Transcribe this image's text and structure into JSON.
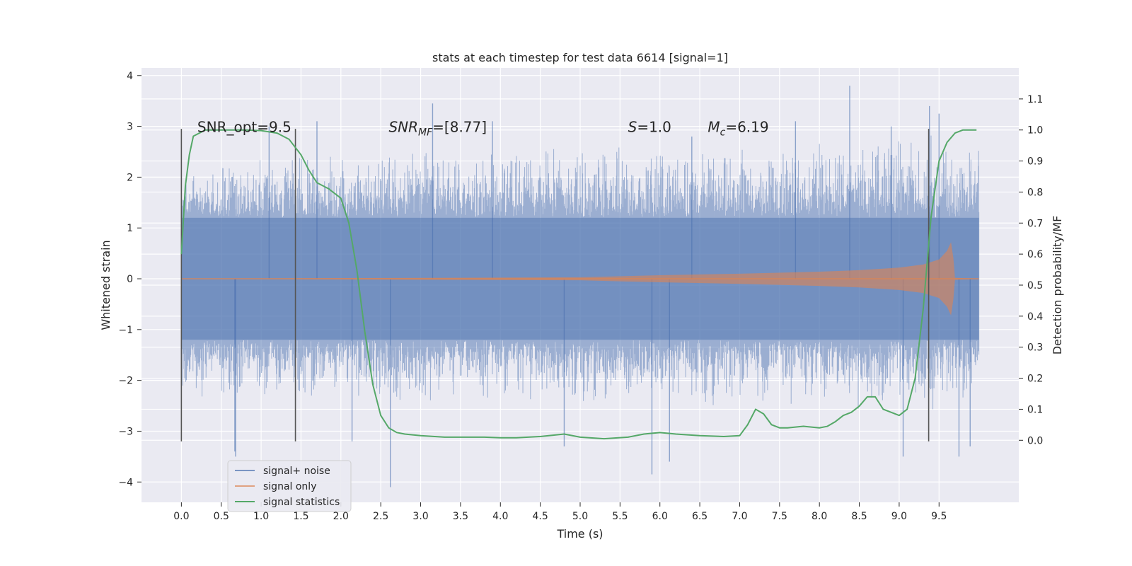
{
  "chart_data": {
    "type": "line",
    "title": "stats at each timestep for test data 6614 [signal=1]",
    "xlabel": "Time (s)",
    "ylabel": "Whitened strain",
    "ylabel_right": "Detection probability/MF",
    "xlim": [
      -0.5,
      10.5
    ],
    "ylim": [
      -4.4,
      4.15
    ],
    "ylim_right": [
      -0.2,
      1.2
    ],
    "x_ticks": [
      0.0,
      0.5,
      1.0,
      1.5,
      2.0,
      2.5,
      3.0,
      3.5,
      4.0,
      4.5,
      5.0,
      5.5,
      6.0,
      6.5,
      7.0,
      7.5,
      8.0,
      8.5,
      9.0,
      9.5
    ],
    "x_tick_labels": [
      "0.0",
      "0.5",
      "1.0",
      "1.5",
      "2.0",
      "2.5",
      "3.0",
      "3.5",
      "4.0",
      "4.5",
      "5.0",
      "5.5",
      "6.0",
      "6.5",
      "7.0",
      "7.5",
      "8.0",
      "8.5",
      "9.0",
      "9.5"
    ],
    "y_ticks": [
      -4,
      -3,
      -2,
      -1,
      0,
      1,
      2,
      3,
      4
    ],
    "y_tick_labels": [
      "−4",
      "−3",
      "−2",
      "−1",
      "0",
      "1",
      "2",
      "3",
      "4"
    ],
    "y_right_ticks": [
      0.0,
      0.1,
      0.2,
      0.3,
      0.4,
      0.5,
      0.6,
      0.7,
      0.8,
      0.9,
      1.0,
      1.1
    ],
    "y_right_tick_labels": [
      "0.0",
      "0.1",
      "0.2",
      "0.3",
      "0.4",
      "0.5",
      "0.6",
      "0.7",
      "0.8",
      "0.9",
      "1.0",
      "1.1"
    ],
    "grid": true,
    "legend_position": "lower-left",
    "colors": {
      "background": "#eaeaf2",
      "grid": "#ffffff",
      "noise": "#4c72b0",
      "signal": "#dd8452",
      "stats": "#55a868",
      "vline": "#555555"
    },
    "annotations": [
      {
        "label": "SNR_opt=9.5",
        "x": 0.2,
        "y": 3.0
      },
      {
        "label": "SNR",
        "sub": "MF",
        "tail": "=[8.77]",
        "x": 2.6,
        "y": 3.0
      },
      {
        "label": "S",
        "tail": "=1.0",
        "x": 5.6,
        "y": 3.0
      },
      {
        "label": "M",
        "sub": "c",
        "tail": "=6.19",
        "x": 6.6,
        "y": 3.0
      }
    ],
    "vertical_lines": [
      0.0,
      1.43,
      9.37
    ],
    "vertical_line_range": [
      -3.2,
      2.95
    ],
    "series": [
      {
        "name": "signal+ noise",
        "description": "whitened strain, noise envelope",
        "envelope": {
          "x": [
            0.0,
            9.5,
            10.0
          ],
          "mean": [
            0.0,
            0.0,
            0.0
          ],
          "band_low": -1.2,
          "band_high": 1.2,
          "peak_max": [
            2.4,
            2.9,
            2.6
          ],
          "peak_min": [
            -2.4,
            -2.6,
            -2.4
          ]
        },
        "outliers": [
          {
            "x": 0.68,
            "y": -3.5
          },
          {
            "x": 0.67,
            "y": -3.4
          },
          {
            "x": 1.1,
            "y": 3.0
          },
          {
            "x": 2.14,
            "y": -3.2
          },
          {
            "x": 2.62,
            "y": -4.1
          },
          {
            "x": 3.15,
            "y": 3.45
          },
          {
            "x": 4.8,
            "y": -3.3
          },
          {
            "x": 5.9,
            "y": -3.85
          },
          {
            "x": 6.12,
            "y": -3.6
          },
          {
            "x": 9.38,
            "y": 3.4
          },
          {
            "x": 8.38,
            "y": 3.8
          },
          {
            "x": 8.9,
            "y": 3.0
          },
          {
            "x": 9.05,
            "y": -3.5
          },
          {
            "x": 9.5,
            "y": 3.25
          },
          {
            "x": 9.75,
            "y": -3.5
          },
          {
            "x": 9.89,
            "y": -3.3
          },
          {
            "x": 3.9,
            "y": 3.1
          },
          {
            "x": 6.4,
            "y": 2.8
          },
          {
            "x": 7.7,
            "y": 3.1
          },
          {
            "x": 1.7,
            "y": 3.1
          }
        ]
      },
      {
        "name": "signal only",
        "description": "chirp, amplitude grows toward merger",
        "x": [
          0.0,
          5.0,
          6.0,
          7.0,
          8.0,
          8.5,
          9.0,
          9.3,
          9.5,
          9.6,
          9.65,
          9.68,
          9.7,
          10.0
        ],
        "amplitude": [
          0.0,
          0.03,
          0.07,
          0.1,
          0.14,
          0.17,
          0.22,
          0.28,
          0.38,
          0.55,
          0.72,
          0.4,
          0.02,
          0.0
        ]
      },
      {
        "name": "signal statistics",
        "axis": "right",
        "x": [
          0.0,
          0.05,
          0.1,
          0.15,
          0.3,
          0.5,
          0.8,
          1.0,
          1.2,
          1.35,
          1.5,
          1.6,
          1.7,
          1.85,
          2.0,
          2.1,
          2.2,
          2.3,
          2.4,
          2.5,
          2.6,
          2.7,
          2.8,
          3.0,
          3.3,
          3.5,
          3.8,
          4.0,
          4.2,
          4.5,
          4.8,
          5.0,
          5.3,
          5.6,
          5.8,
          6.0,
          6.2,
          6.5,
          6.8,
          7.0,
          7.1,
          7.2,
          7.3,
          7.4,
          7.5,
          7.6,
          7.8,
          8.0,
          8.1,
          8.2,
          8.3,
          8.4,
          8.5,
          8.6,
          8.7,
          8.8,
          8.9,
          9.0,
          9.1,
          9.2,
          9.3,
          9.4,
          9.5,
          9.6,
          9.7,
          9.8,
          9.9,
          9.97
        ],
        "y": [
          0.6,
          0.82,
          0.92,
          0.98,
          1.0,
          1.0,
          1.0,
          0.998,
          0.99,
          0.97,
          0.92,
          0.87,
          0.83,
          0.81,
          0.78,
          0.7,
          0.55,
          0.35,
          0.18,
          0.08,
          0.04,
          0.025,
          0.02,
          0.015,
          0.01,
          0.01,
          0.01,
          0.008,
          0.008,
          0.012,
          0.02,
          0.01,
          0.005,
          0.01,
          0.02,
          0.025,
          0.02,
          0.015,
          0.012,
          0.015,
          0.05,
          0.1,
          0.085,
          0.05,
          0.04,
          0.04,
          0.045,
          0.04,
          0.045,
          0.06,
          0.08,
          0.09,
          0.11,
          0.14,
          0.14,
          0.1,
          0.09,
          0.08,
          0.1,
          0.2,
          0.42,
          0.72,
          0.9,
          0.96,
          0.99,
          1.0,
          1.0,
          1.0
        ]
      }
    ],
    "legend": [
      {
        "label": "signal+ noise",
        "color": "#4c72b0"
      },
      {
        "label": "signal only",
        "color": "#dd8452"
      },
      {
        "label": "signal statistics",
        "color": "#55a868"
      }
    ]
  }
}
